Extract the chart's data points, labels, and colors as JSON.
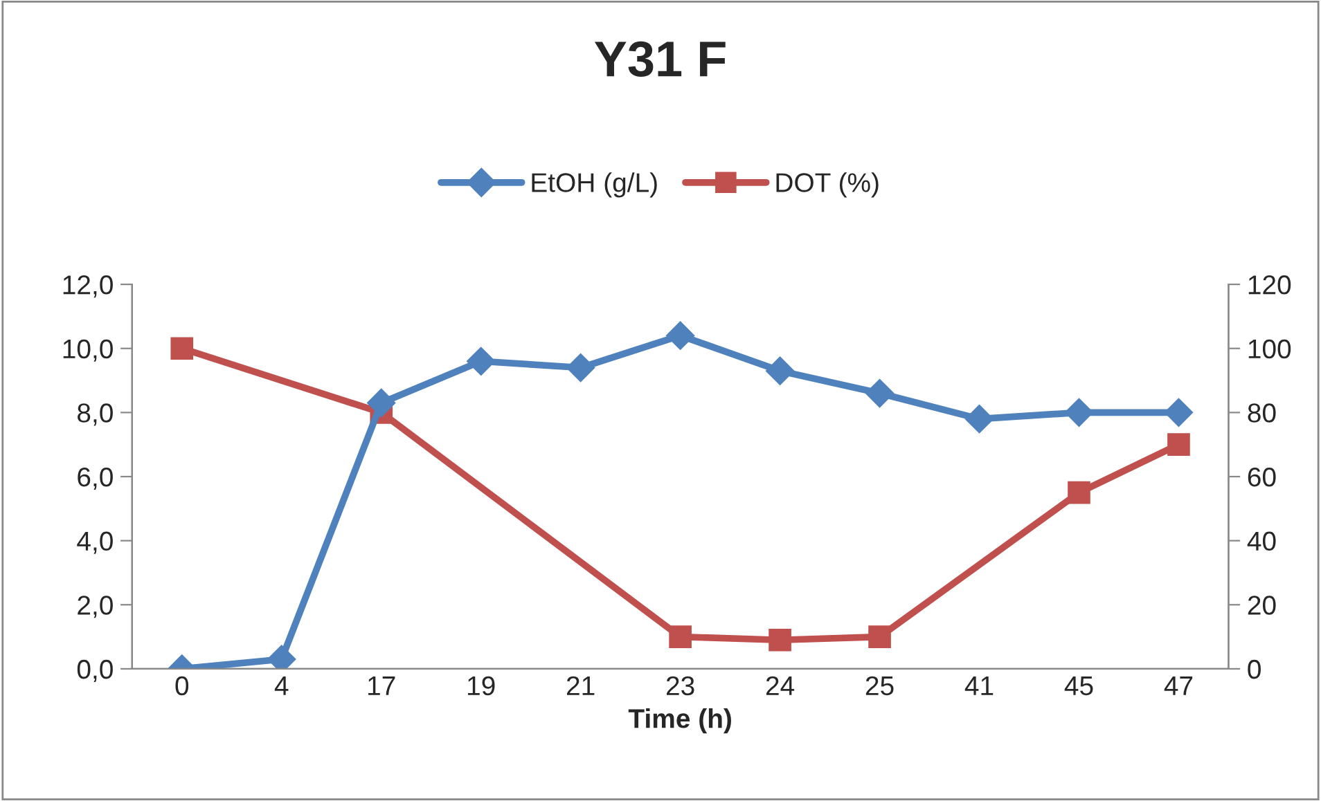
{
  "chart_data": {
    "type": "line",
    "title": "Y31 F",
    "xlabel": "Time (h)",
    "categories": [
      "0",
      "4",
      "17",
      "19",
      "21",
      "23",
      "24",
      "25",
      "41",
      "45",
      "47"
    ],
    "series": [
      {
        "name": "EtOH (g/L)",
        "color": "#4f81bd",
        "marker": "diamond",
        "values": [
          0.0,
          0.3,
          8.3,
          9.6,
          9.4,
          10.4,
          9.3,
          8.6,
          7.8,
          8.0,
          8.0
        ]
      },
      {
        "name": "DOT (%)",
        "color": "#c0504d",
        "marker": "square",
        "axis": "y2",
        "values": [
          100,
          null,
          80,
          null,
          null,
          10,
          9,
          10,
          null,
          55,
          70
        ]
      }
    ],
    "ylim": [
      0,
      12
    ],
    "yticks": [
      {
        "value": 0,
        "label": "0,0"
      },
      {
        "value": 2,
        "label": "2,0"
      },
      {
        "value": 4,
        "label": "4,0"
      },
      {
        "value": 6,
        "label": "6,0"
      },
      {
        "value": 8,
        "label": "8,0"
      },
      {
        "value": 10,
        "label": "10,0"
      },
      {
        "value": 12,
        "label": "12,0"
      }
    ],
    "y2lim": [
      0,
      120
    ],
    "y2ticks": [
      0,
      20,
      40,
      60,
      80,
      100,
      120
    ],
    "grid": false,
    "legend": "top",
    "line_style": "solid"
  }
}
